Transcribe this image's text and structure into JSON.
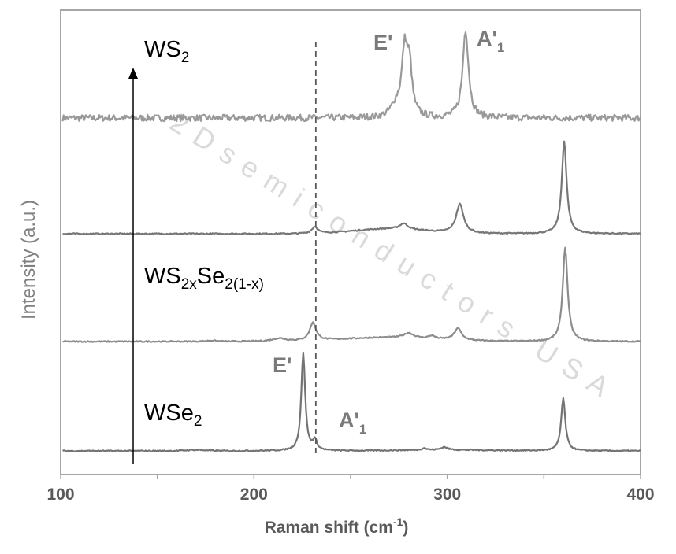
{
  "chart_data": {
    "type": "line",
    "title": "",
    "xlabel": "Raman shift (cm",
    "xlabel_sup": "-1",
    "xlabel_end": ")",
    "ylabel": "Intensity (a.u.)",
    "xlim": [
      100,
      400
    ],
    "xticks": [
      "100",
      "200",
      "300",
      "400"
    ],
    "grid": false,
    "legend": "none",
    "arrow_direction": "up",
    "reference_line_x": 232,
    "watermark": "2Dsemiconductors USA",
    "labels": {
      "ws2": {
        "main": "WS",
        "sub": "2"
      },
      "alloy": {
        "main1": "WS",
        "sub1": "2x",
        "main2": "Se",
        "sub2": "2(1-x)"
      },
      "wse2": {
        "main": "WSe",
        "sub": "2"
      }
    },
    "peak_labels": {
      "ws2_e": "E'",
      "ws2_a_main": "A'",
      "ws2_a_sub": "1",
      "wse2_e": "E'",
      "wse2_a_main": "A'",
      "wse2_a_sub": "1"
    },
    "series": [
      {
        "color": "#999999",
        "baseline": 0.55,
        "noise": 0.045,
        "peaks": [
          [
            273.5,
            0.15,
            3
          ],
          [
            278,
            0.9,
            1.8
          ],
          [
            280.5,
            0.6,
            1.5
          ],
          [
            309.5,
            1.2,
            1.8
          ]
        ]
      },
      {
        "color": "#767676",
        "baseline": 0.0,
        "noise": 0.006,
        "broad": [
          [
            270,
            0.05,
            18
          ]
        ],
        "peaks": [
          [
            231.5,
            0.07,
            1.8
          ],
          [
            277.5,
            0.06,
            2.5
          ],
          [
            306.5,
            0.3,
            2.3
          ],
          [
            360.5,
            0.95,
            1.5
          ]
        ]
      },
      {
        "color": "#8c8c8c",
        "baseline": 0.0,
        "noise": 0.006,
        "broad": [
          [
            270,
            0.04,
            25
          ]
        ],
        "peaks": [
          [
            178,
            0.01,
            3
          ],
          [
            213,
            0.03,
            4
          ],
          [
            230.5,
            0.18,
            2
          ],
          [
            280,
            0.05,
            3
          ],
          [
            292,
            0.03,
            2
          ],
          [
            305.5,
            0.12,
            2.2
          ],
          [
            361,
            0.96,
            1.5
          ]
        ]
      },
      {
        "color": "#737373",
        "baseline": 0.0,
        "noise": 0.006,
        "broad": [
          [
            170,
            0.01,
            5
          ],
          [
            300,
            0.01,
            25
          ]
        ],
        "peaks": [
          [
            225.5,
            1.0,
            1.2
          ],
          [
            231.5,
            0.1,
            1.3
          ],
          [
            288,
            0.02,
            1.5
          ],
          [
            298.5,
            0.03,
            2
          ],
          [
            360,
            0.53,
            1.3
          ]
        ]
      }
    ]
  }
}
